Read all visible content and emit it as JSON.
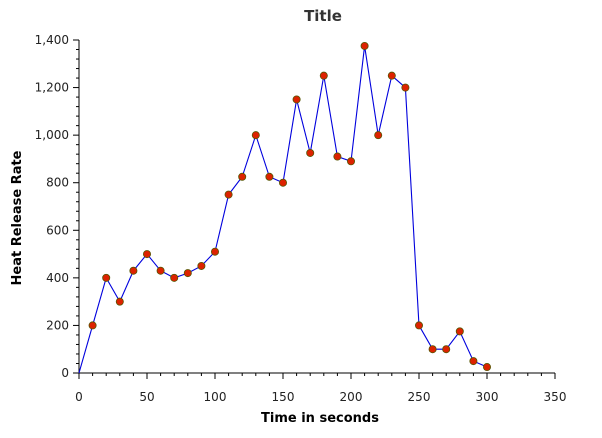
{
  "chart_data": {
    "type": "line",
    "title": "Title",
    "xlabel": "Time in seconds",
    "ylabel": "Heat Release Rate",
    "xlim": [
      0,
      350
    ],
    "ylim": [
      0,
      1400
    ],
    "x_ticks": [
      "0",
      "50",
      "100",
      "150",
      "200",
      "250",
      "300",
      "350"
    ],
    "y_ticks": [
      "0",
      "200",
      "400",
      "600",
      "800",
      "1,000",
      "1,200",
      "1,400"
    ],
    "grid": false,
    "legend": "none",
    "colors": {
      "line": "#0000dd",
      "marker_fill": "#dd2200",
      "marker_stroke": "#555500",
      "axis": "#000000"
    },
    "series": [
      {
        "x": [
          0,
          10,
          20,
          30,
          40,
          50,
          60,
          70,
          80,
          90,
          100,
          110,
          120,
          130,
          140,
          150,
          160,
          170,
          180,
          190,
          200,
          210,
          220,
          230,
          240,
          250,
          260,
          270,
          280,
          290,
          300
        ],
        "y": [
          0,
          200,
          400,
          300,
          430,
          500,
          430,
          400,
          420,
          450,
          510,
          750,
          825,
          1000,
          825,
          800,
          1150,
          925,
          1250,
          910,
          890,
          1375,
          1000,
          1250,
          1200,
          200,
          100,
          100,
          175,
          50,
          25
        ]
      }
    ]
  }
}
